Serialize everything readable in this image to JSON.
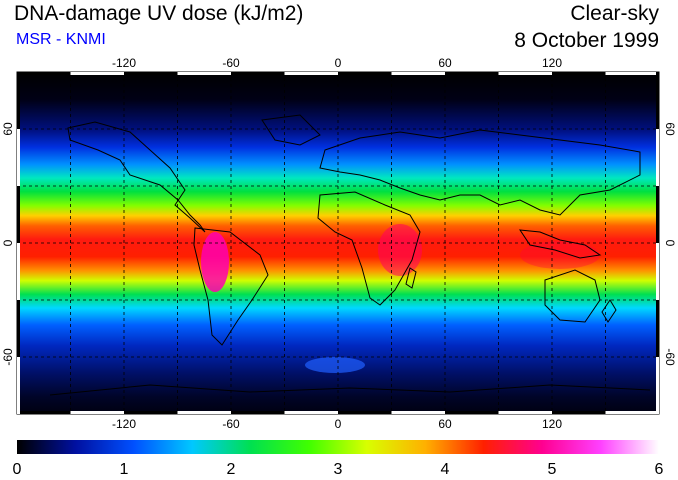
{
  "header": {
    "title": "DNA-damage UV dose (kJ/m2)",
    "subtitle": "MSR - KNMI",
    "condition": "Clear-sky",
    "date": "8 October 1999"
  },
  "map": {
    "lon_ticks": [
      "-120",
      "-60",
      "0",
      "60",
      "120"
    ],
    "lat_ticks": [
      "60",
      "0",
      "-60"
    ],
    "grid_lon": [
      -150,
      -120,
      -90,
      -60,
      -30,
      0,
      30,
      60,
      90,
      120,
      150
    ],
    "grid_lat": [
      60,
      30,
      0,
      -30,
      -60
    ],
    "lon_range": [
      -180,
      180
    ],
    "lat_range": [
      -90,
      90
    ]
  },
  "colorbar": {
    "min": 0,
    "max": 6,
    "tick_labels": [
      "0",
      "1",
      "2",
      "3",
      "4",
      "5",
      "6"
    ],
    "colors": [
      "#000000",
      "#0010a0",
      "#0050ff",
      "#00c8ff",
      "#00e050",
      "#40ff00",
      "#d8ff00",
      "#ffb000",
      "#ff2000",
      "#ff0090",
      "#ff40ff",
      "#ffffff"
    ]
  }
}
